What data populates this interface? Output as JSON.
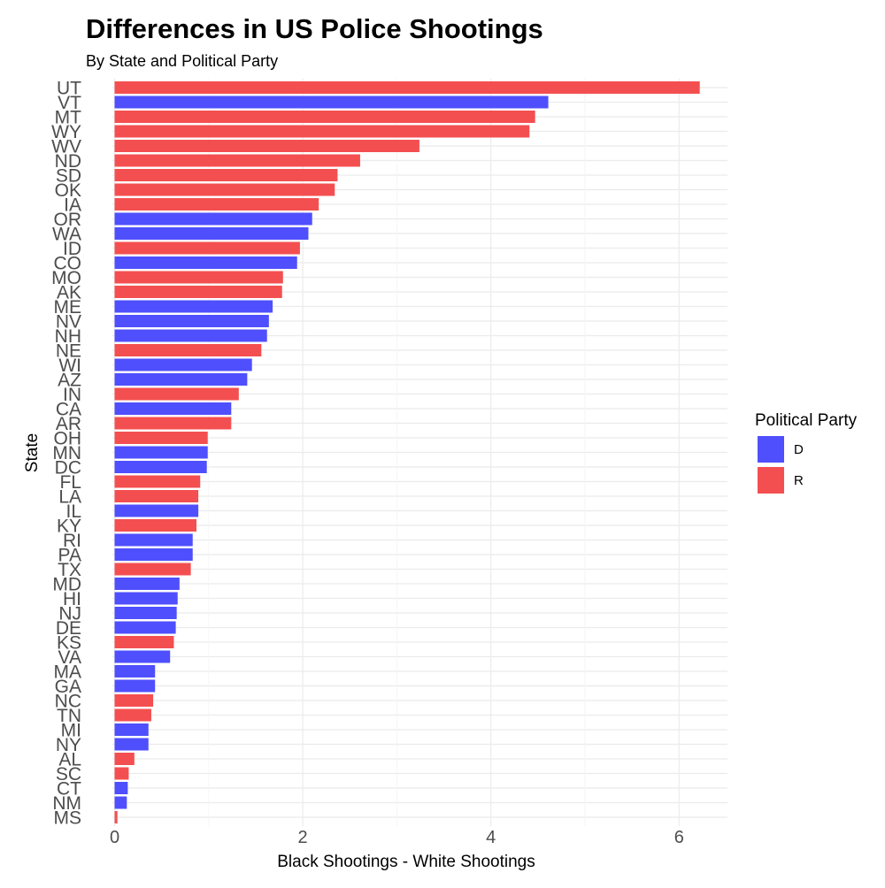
{
  "chart_data": {
    "type": "bar",
    "orientation": "horizontal",
    "title": "Differences in US Police Shootings",
    "subtitle": "By State and Political Party",
    "xlabel": "Black Shootings - White Shootings",
    "ylabel": "State",
    "xlim": [
      0,
      6.5
    ],
    "x_ticks": [
      0,
      2,
      4,
      6
    ],
    "grid": true,
    "legend_position": "right",
    "legend": {
      "title": "Political Party",
      "entries": [
        {
          "key": "D",
          "label": "D",
          "color": "#4f4ffd"
        },
        {
          "key": "R",
          "label": "R",
          "color": "#f44f50"
        }
      ]
    },
    "bars": [
      {
        "state": "UT",
        "value": 6.22,
        "party": "R"
      },
      {
        "state": "VT",
        "value": 4.61,
        "party": "D"
      },
      {
        "state": "MT",
        "value": 4.47,
        "party": "R"
      },
      {
        "state": "WY",
        "value": 4.41,
        "party": "R"
      },
      {
        "state": "WV",
        "value": 3.24,
        "party": "R"
      },
      {
        "state": "ND",
        "value": 2.61,
        "party": "R"
      },
      {
        "state": "SD",
        "value": 2.37,
        "party": "R"
      },
      {
        "state": "OK",
        "value": 2.34,
        "party": "R"
      },
      {
        "state": "IA",
        "value": 2.17,
        "party": "R"
      },
      {
        "state": "OR",
        "value": 2.1,
        "party": "D"
      },
      {
        "state": "WA",
        "value": 2.06,
        "party": "D"
      },
      {
        "state": "ID",
        "value": 1.97,
        "party": "R"
      },
      {
        "state": "CO",
        "value": 1.94,
        "party": "D"
      },
      {
        "state": "MO",
        "value": 1.79,
        "party": "R"
      },
      {
        "state": "AK",
        "value": 1.78,
        "party": "R"
      },
      {
        "state": "ME",
        "value": 1.68,
        "party": "D"
      },
      {
        "state": "NV",
        "value": 1.64,
        "party": "D"
      },
      {
        "state": "NH",
        "value": 1.62,
        "party": "D"
      },
      {
        "state": "NE",
        "value": 1.56,
        "party": "R"
      },
      {
        "state": "WI",
        "value": 1.46,
        "party": "D"
      },
      {
        "state": "AZ",
        "value": 1.41,
        "party": "D"
      },
      {
        "state": "IN",
        "value": 1.32,
        "party": "R"
      },
      {
        "state": "CA",
        "value": 1.24,
        "party": "D"
      },
      {
        "state": "AR",
        "value": 1.24,
        "party": "R"
      },
      {
        "state": "OH",
        "value": 0.99,
        "party": "R"
      },
      {
        "state": "MN",
        "value": 0.99,
        "party": "D"
      },
      {
        "state": "DC",
        "value": 0.98,
        "party": "D"
      },
      {
        "state": "FL",
        "value": 0.91,
        "party": "R"
      },
      {
        "state": "LA",
        "value": 0.89,
        "party": "R"
      },
      {
        "state": "IL",
        "value": 0.89,
        "party": "D"
      },
      {
        "state": "KY",
        "value": 0.87,
        "party": "R"
      },
      {
        "state": "RI",
        "value": 0.83,
        "party": "D"
      },
      {
        "state": "PA",
        "value": 0.83,
        "party": "D"
      },
      {
        "state": "TX",
        "value": 0.81,
        "party": "R"
      },
      {
        "state": "MD",
        "value": 0.69,
        "party": "D"
      },
      {
        "state": "HI",
        "value": 0.67,
        "party": "D"
      },
      {
        "state": "NJ",
        "value": 0.66,
        "party": "D"
      },
      {
        "state": "DE",
        "value": 0.65,
        "party": "D"
      },
      {
        "state": "KS",
        "value": 0.63,
        "party": "R"
      },
      {
        "state": "VA",
        "value": 0.59,
        "party": "D"
      },
      {
        "state": "MA",
        "value": 0.43,
        "party": "D"
      },
      {
        "state": "GA",
        "value": 0.43,
        "party": "D"
      },
      {
        "state": "NC",
        "value": 0.41,
        "party": "R"
      },
      {
        "state": "TN",
        "value": 0.39,
        "party": "R"
      },
      {
        "state": "MI",
        "value": 0.36,
        "party": "D"
      },
      {
        "state": "NY",
        "value": 0.36,
        "party": "D"
      },
      {
        "state": "AL",
        "value": 0.21,
        "party": "R"
      },
      {
        "state": "SC",
        "value": 0.15,
        "party": "R"
      },
      {
        "state": "CT",
        "value": 0.14,
        "party": "D"
      },
      {
        "state": "NM",
        "value": 0.13,
        "party": "D"
      },
      {
        "state": "MS",
        "value": 0.03,
        "party": "R"
      }
    ]
  }
}
